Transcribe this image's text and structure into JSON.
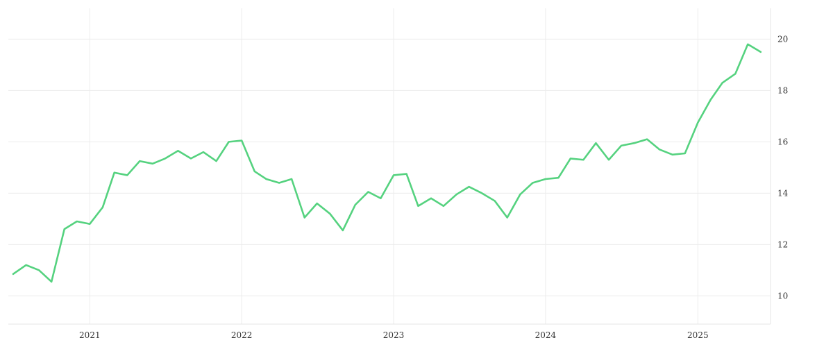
{
  "chart_data": {
    "type": "line",
    "title": "",
    "xlabel": "",
    "ylabel": "",
    "x_tick_labels": [
      "2021",
      "2022",
      "2023",
      "2024",
      "2025"
    ],
    "y_tick_labels": [
      "10",
      "12",
      "14",
      "16",
      "18",
      "20"
    ],
    "ylim": [
      8.9,
      21.2
    ],
    "y_axis_side": "right",
    "grid": true,
    "legend": "none",
    "series": [
      {
        "color": "#55d27f",
        "points": [
          [
            "2020-07-01",
            10.85
          ],
          [
            "2020-08-01",
            11.2
          ],
          [
            "2020-09-01",
            11.0
          ],
          [
            "2020-10-01",
            10.55
          ],
          [
            "2020-11-01",
            12.6
          ],
          [
            "2020-12-01",
            12.9
          ],
          [
            "2021-01-01",
            12.8
          ],
          [
            "2021-02-01",
            13.45
          ],
          [
            "2021-03-01",
            14.8
          ],
          [
            "2021-04-01",
            14.7
          ],
          [
            "2021-05-01",
            15.25
          ],
          [
            "2021-06-01",
            15.15
          ],
          [
            "2021-07-01",
            15.35
          ],
          [
            "2021-08-01",
            15.65
          ],
          [
            "2021-09-01",
            15.35
          ],
          [
            "2021-10-01",
            15.6
          ],
          [
            "2021-11-01",
            15.25
          ],
          [
            "2021-12-01",
            16.0
          ],
          [
            "2022-01-01",
            16.05
          ],
          [
            "2022-02-01",
            14.85
          ],
          [
            "2022-03-01",
            14.55
          ],
          [
            "2022-04-01",
            14.4
          ],
          [
            "2022-05-01",
            14.55
          ],
          [
            "2022-06-01",
            13.05
          ],
          [
            "2022-07-01",
            13.6
          ],
          [
            "2022-08-01",
            13.2
          ],
          [
            "2022-09-01",
            12.55
          ],
          [
            "2022-10-01",
            13.55
          ],
          [
            "2022-11-01",
            14.05
          ],
          [
            "2022-12-01",
            13.8
          ],
          [
            "2023-01-01",
            14.7
          ],
          [
            "2023-02-01",
            14.75
          ],
          [
            "2023-03-01",
            13.5
          ],
          [
            "2023-04-01",
            13.8
          ],
          [
            "2023-05-01",
            13.5
          ],
          [
            "2023-06-01",
            13.95
          ],
          [
            "2023-07-01",
            14.25
          ],
          [
            "2023-08-01",
            14.0
          ],
          [
            "2023-09-01",
            13.7
          ],
          [
            "2023-10-01",
            13.05
          ],
          [
            "2023-11-01",
            13.95
          ],
          [
            "2023-12-01",
            14.4
          ],
          [
            "2024-01-01",
            14.55
          ],
          [
            "2024-02-01",
            14.6
          ],
          [
            "2024-03-01",
            15.35
          ],
          [
            "2024-04-01",
            15.3
          ],
          [
            "2024-05-01",
            15.95
          ],
          [
            "2024-06-01",
            15.3
          ],
          [
            "2024-07-01",
            15.85
          ],
          [
            "2024-08-01",
            15.95
          ],
          [
            "2024-09-01",
            16.1
          ],
          [
            "2024-10-01",
            15.7
          ],
          [
            "2024-11-01",
            15.5
          ],
          [
            "2024-12-01",
            15.55
          ],
          [
            "2025-01-01",
            16.75
          ],
          [
            "2025-02-01",
            17.65
          ],
          [
            "2025-03-01",
            18.3
          ],
          [
            "2025-04-01",
            18.65
          ],
          [
            "2025-05-01",
            19.8
          ],
          [
            "2025-06-01",
            19.5
          ]
        ]
      }
    ]
  }
}
